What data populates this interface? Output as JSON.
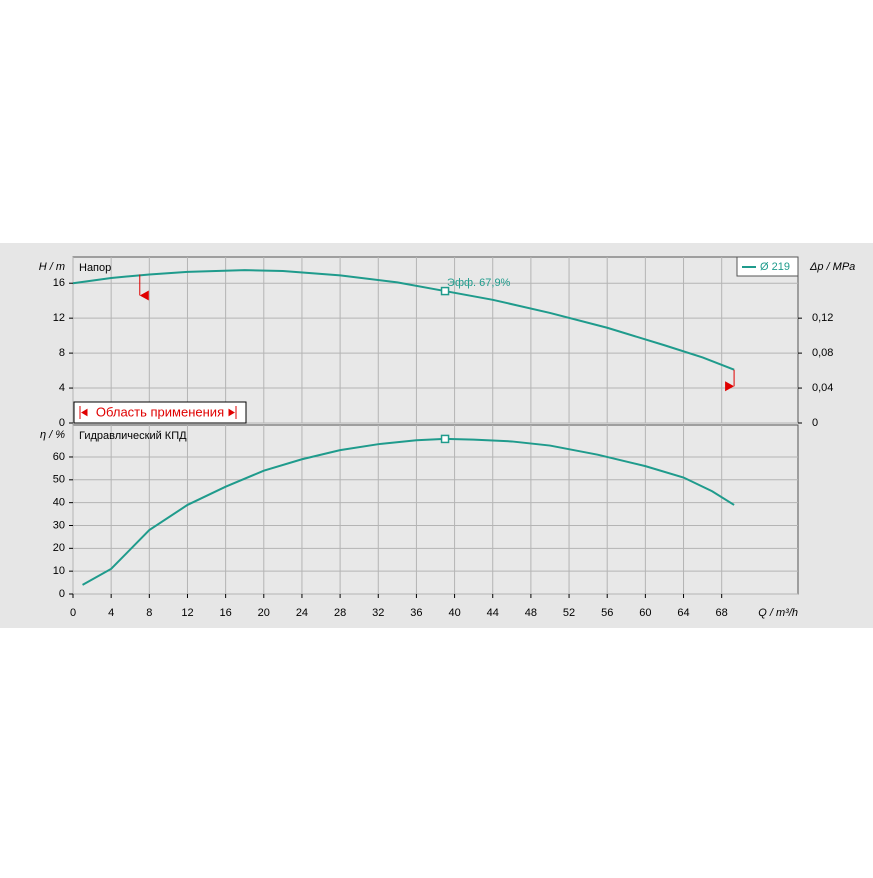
{
  "chart_data": [
    {
      "type": "line",
      "title": "Напор",
      "y_label": "H / m",
      "y2_label": "Δp / MPa",
      "x": [
        0,
        4,
        8,
        12,
        18,
        22,
        28,
        34,
        39,
        44,
        50,
        56,
        62,
        66,
        69.3
      ],
      "series": [
        {
          "name": "Ø 219",
          "color": "#1f9b8c",
          "values": [
            16.0,
            16.6,
            17.0,
            17.3,
            17.5,
            17.4,
            16.9,
            16.1,
            15.1,
            14.1,
            12.6,
            10.9,
            8.9,
            7.5,
            6.1
          ]
        }
      ],
      "xlim": [
        0,
        76
      ],
      "xticks": [
        0,
        4,
        8,
        12,
        16,
        20,
        24,
        28,
        32,
        36,
        40,
        44,
        48,
        52,
        56,
        60,
        64,
        68
      ],
      "ylim": [
        0,
        19
      ],
      "yticks": [
        0,
        4,
        8,
        12,
        16
      ],
      "y2lim": [
        0,
        0.19
      ],
      "y2ticks": [
        0,
        {
          "value": 0.04,
          "label": "0,04"
        },
        {
          "value": 0.08,
          "label": "0,08"
        },
        {
          "value": 0.12,
          "label": "0,12"
        }
      ],
      "duty_point": {
        "x": 39,
        "y": 15.1,
        "label": "Эфф.  67,9%"
      },
      "operating_range": {
        "label": "Область применения",
        "x_min": 7,
        "y_min": 14.6,
        "x_max": 69.3,
        "y_max": 4.2
      },
      "grid": true
    },
    {
      "type": "line",
      "title": "Гидравлический КПД",
      "y_label": "η / %",
      "x_label": "Q / m³/h",
      "x": [
        1,
        4,
        8,
        12,
        16,
        20,
        24,
        28,
        32,
        36,
        39,
        42,
        46,
        50,
        55,
        60,
        64,
        67,
        69.3
      ],
      "series": [
        {
          "color": "#1f9b8c",
          "values": [
            4,
            11,
            28,
            39,
            47,
            54,
            59,
            63,
            65.6,
            67.3,
            67.9,
            67.6,
            66.8,
            65,
            61,
            56,
            51,
            45,
            39
          ]
        }
      ],
      "xlim": [
        0,
        76
      ],
      "xticks": [
        0,
        4,
        8,
        12,
        16,
        20,
        24,
        28,
        32,
        36,
        40,
        44,
        48,
        52,
        56,
        60,
        64,
        68
      ],
      "ylim": [
        0,
        74
      ],
      "yticks": [
        0,
        10,
        20,
        30,
        40,
        50,
        60
      ],
      "duty_point": {
        "x": 39,
        "y": 67.9
      },
      "grid": true
    }
  ]
}
